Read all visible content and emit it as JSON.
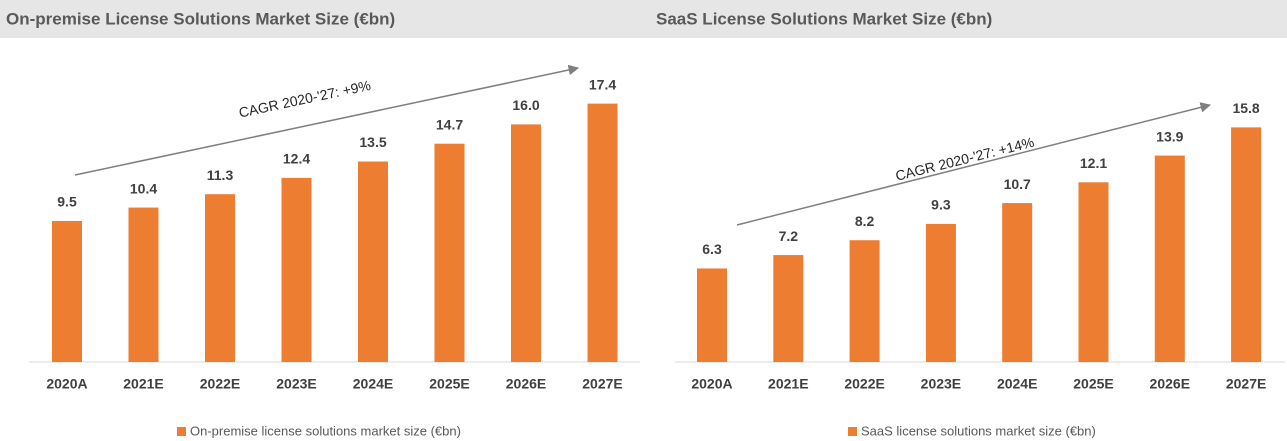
{
  "chart_data": [
    {
      "type": "bar",
      "title": "On-premise License Solutions Market Size (€bn)",
      "categories": [
        "2020A",
        "2021E",
        "2022E",
        "2023E",
        "2024E",
        "2025E",
        "2026E",
        "2027E"
      ],
      "series": [
        {
          "name": "On-premise license solutions market size (€bn)",
          "color": "#ed7d31",
          "values": [
            9.5,
            10.4,
            11.3,
            12.4,
            13.5,
            14.7,
            16.0,
            17.4
          ],
          "value_labels": [
            "9.5",
            "10.4",
            "11.3",
            "12.4",
            "13.5",
            "14.7",
            "16.0",
            "17.4"
          ]
        }
      ],
      "ylim": [
        0,
        20
      ],
      "annotation": "CAGR 2020-'27: +9%"
    },
    {
      "type": "bar",
      "title": "SaaS License Solutions Market Size (€bn)",
      "categories": [
        "2020A",
        "2021E",
        "2022E",
        "2023E",
        "2024E",
        "2025E",
        "2026E",
        "2027E"
      ],
      "series": [
        {
          "name": "SaaS license solutions market size (€bn)",
          "color": "#ed7d31",
          "values": [
            6.3,
            7.2,
            8.2,
            9.3,
            10.7,
            12.1,
            13.9,
            15.8
          ],
          "value_labels": [
            "6.3",
            "7.2",
            "8.2",
            "9.3",
            "10.7",
            "12.1",
            "13.9",
            "15.8"
          ]
        }
      ],
      "ylim": [
        0,
        20
      ],
      "annotation": "CAGR 2020-'27: +14%"
    }
  ]
}
